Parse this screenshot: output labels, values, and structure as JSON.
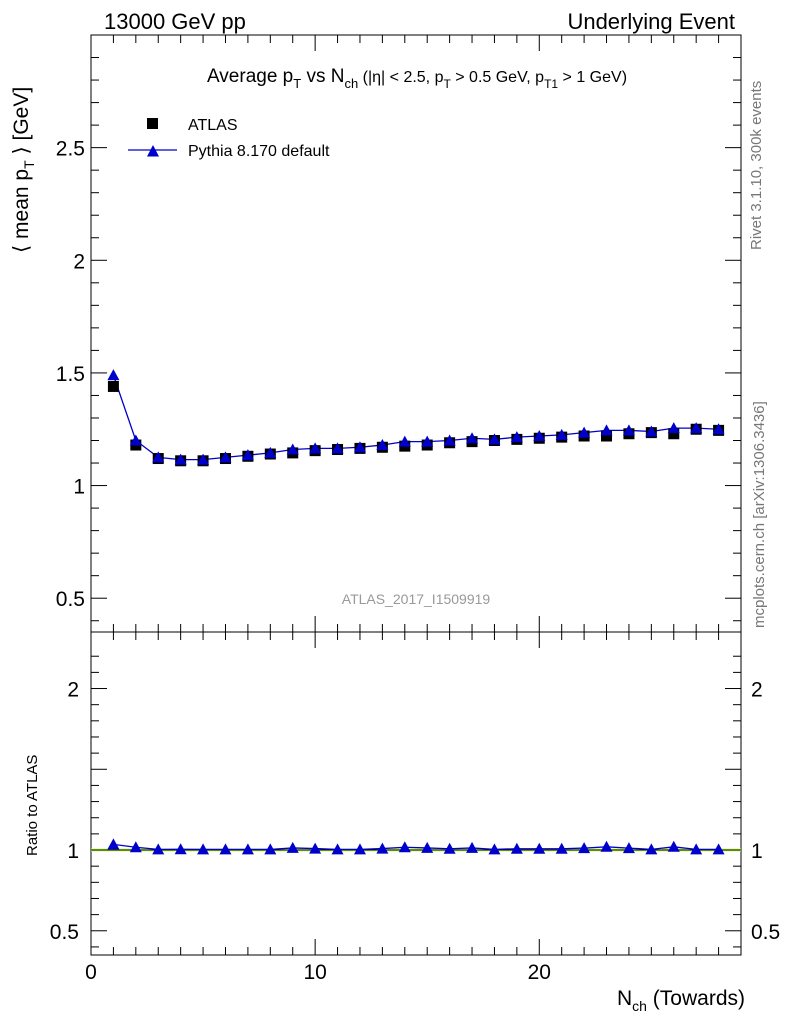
{
  "header": {
    "left": "13000 GeV pp",
    "right": "Underlying Event"
  },
  "side_labels": {
    "rivet": "Rivet 3.1.10,  300k events",
    "mcplots": "mcplots.cern.ch [arXiv:1306.3436]"
  },
  "watermark": "ATLAS_2017_I1509919",
  "colors": {
    "data": "#000000",
    "mc": "#0000cc",
    "ratio_band": "#ccff66",
    "axis": "#000000",
    "watermark": "#999999",
    "side_text": "#777777"
  },
  "chart_data": [
    {
      "type": "scatter",
      "title": "Average p_T vs N_ch (|η| < 2.5, p_T > 0.5 GeV, p_T1 > 1 GeV)",
      "ylabel": "⟨ mean p_T ⟩ [GeV]",
      "xlim": [
        0,
        29
      ],
      "ylim": [
        0.35,
        3.0
      ],
      "y_ticks": [
        0.5,
        1,
        1.5,
        2,
        2.5
      ],
      "y_tick_labels": [
        "0.5",
        "1",
        "1.5",
        "2",
        "2.5"
      ],
      "legend": [
        "ATLAS",
        "Pythia 8.170 default"
      ],
      "legend_position": "top-left",
      "x": [
        1,
        2,
        3,
        4,
        5,
        6,
        7,
        8,
        9,
        10,
        11,
        12,
        13,
        14,
        15,
        16,
        17,
        18,
        19,
        20,
        21,
        22,
        23,
        24,
        25,
        26,
        27,
        28
      ],
      "series": [
        {
          "name": "ATLAS",
          "marker": "square",
          "values": [
            1.44,
            1.18,
            1.12,
            1.11,
            1.11,
            1.12,
            1.13,
            1.14,
            1.145,
            1.155,
            1.16,
            1.165,
            1.17,
            1.175,
            1.18,
            1.19,
            1.195,
            1.2,
            1.205,
            1.21,
            1.215,
            1.22,
            1.22,
            1.23,
            1.235,
            1.23,
            1.25,
            1.245
          ]
        },
        {
          "name": "Pythia 8.170 default",
          "marker": "triangle",
          "line": true,
          "values": [
            1.49,
            1.2,
            1.125,
            1.115,
            1.115,
            1.125,
            1.135,
            1.145,
            1.16,
            1.165,
            1.165,
            1.17,
            1.18,
            1.195,
            1.195,
            1.2,
            1.21,
            1.205,
            1.215,
            1.22,
            1.225,
            1.235,
            1.245,
            1.245,
            1.24,
            1.255,
            1.255,
            1.25
          ]
        }
      ]
    },
    {
      "type": "scatter",
      "ylabel": "Ratio to ATLAS",
      "xlabel": "N_ch (Towards)",
      "xlim": [
        0,
        29
      ],
      "ylim": [
        0.35,
        2.35
      ],
      "x_ticks": [
        0,
        10,
        20
      ],
      "x_tick_labels": [
        "0",
        "10",
        "20"
      ],
      "y_ticks": [
        0.5,
        1,
        2
      ],
      "y_tick_labels": [
        "0.5",
        "1",
        "2"
      ],
      "x": [
        1,
        2,
        3,
        4,
        5,
        6,
        7,
        8,
        9,
        10,
        11,
        12,
        13,
        14,
        15,
        16,
        17,
        18,
        19,
        20,
        21,
        22,
        23,
        24,
        25,
        26,
        27,
        28
      ],
      "series": [
        {
          "name": "Pythia 8.170 default",
          "values": [
            1.035,
            1.017,
            1.004,
            1.005,
            1.004,
            1.004,
            1.004,
            1.004,
            1.013,
            1.009,
            1.004,
            1.004,
            1.009,
            1.017,
            1.013,
            1.008,
            1.013,
            1.004,
            1.008,
            1.008,
            1.008,
            1.012,
            1.02,
            1.012,
            1.004,
            1.02,
            1.004,
            1.004
          ]
        }
      ]
    }
  ]
}
